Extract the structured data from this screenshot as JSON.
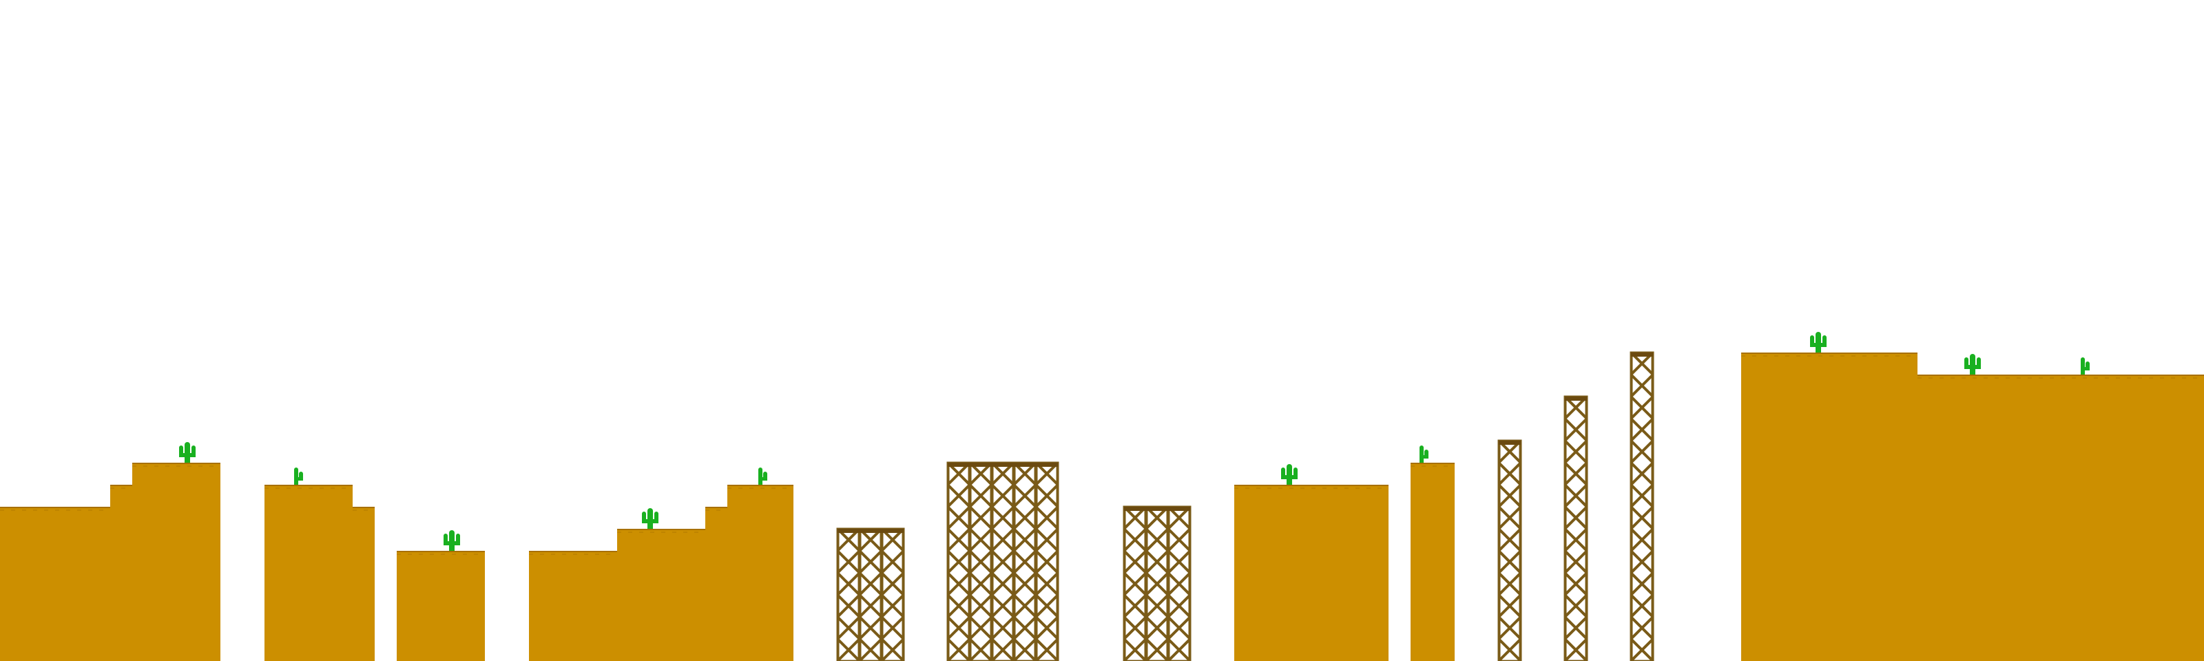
{
  "scene": {
    "background_color": "#ffffff",
    "palette": {
      "sand": "#cc8f00",
      "sand_edge": "#a87000",
      "girder": "#7a5b18",
      "girder_top": "#6b4a10",
      "cactus": "#19b020"
    },
    "tiles": {
      "sand": "sand-block",
      "girder": "steel-girder-block",
      "cactus": "cactus-sprite"
    }
  }
}
